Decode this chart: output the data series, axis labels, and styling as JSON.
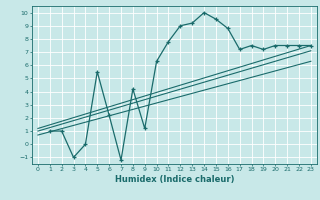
{
  "xlabel": "Humidex (Indice chaleur)",
  "bg_color": "#c8e8e8",
  "line_color": "#1a6b6b",
  "xlim": [
    -0.5,
    23.5
  ],
  "ylim": [
    -1.5,
    10.5
  ],
  "xticks": [
    0,
    1,
    2,
    3,
    4,
    5,
    6,
    7,
    8,
    9,
    10,
    11,
    12,
    13,
    14,
    15,
    16,
    17,
    18,
    19,
    20,
    21,
    22,
    23
  ],
  "yticks": [
    -1,
    0,
    1,
    2,
    3,
    4,
    5,
    6,
    7,
    8,
    9,
    10
  ],
  "curve_x": [
    1,
    2,
    3,
    4,
    5,
    6,
    7,
    8,
    9,
    10,
    11,
    12,
    13,
    14,
    15,
    16,
    17,
    18,
    19,
    20,
    21,
    22,
    23
  ],
  "curve_y": [
    1,
    1,
    -1,
    0,
    5.5,
    2.2,
    -1.2,
    4.2,
    1.2,
    6.3,
    7.8,
    9.0,
    9.2,
    10.0,
    9.5,
    8.8,
    7.2,
    7.5,
    7.2,
    7.5,
    7.5,
    7.5,
    7.5
  ],
  "line1_x": [
    0,
    23
  ],
  "line1_y": [
    1.2,
    7.5
  ],
  "line2_x": [
    0,
    23
  ],
  "line2_y": [
    1.0,
    7.1
  ],
  "line3_x": [
    0,
    23
  ],
  "line3_y": [
    0.7,
    6.3
  ]
}
